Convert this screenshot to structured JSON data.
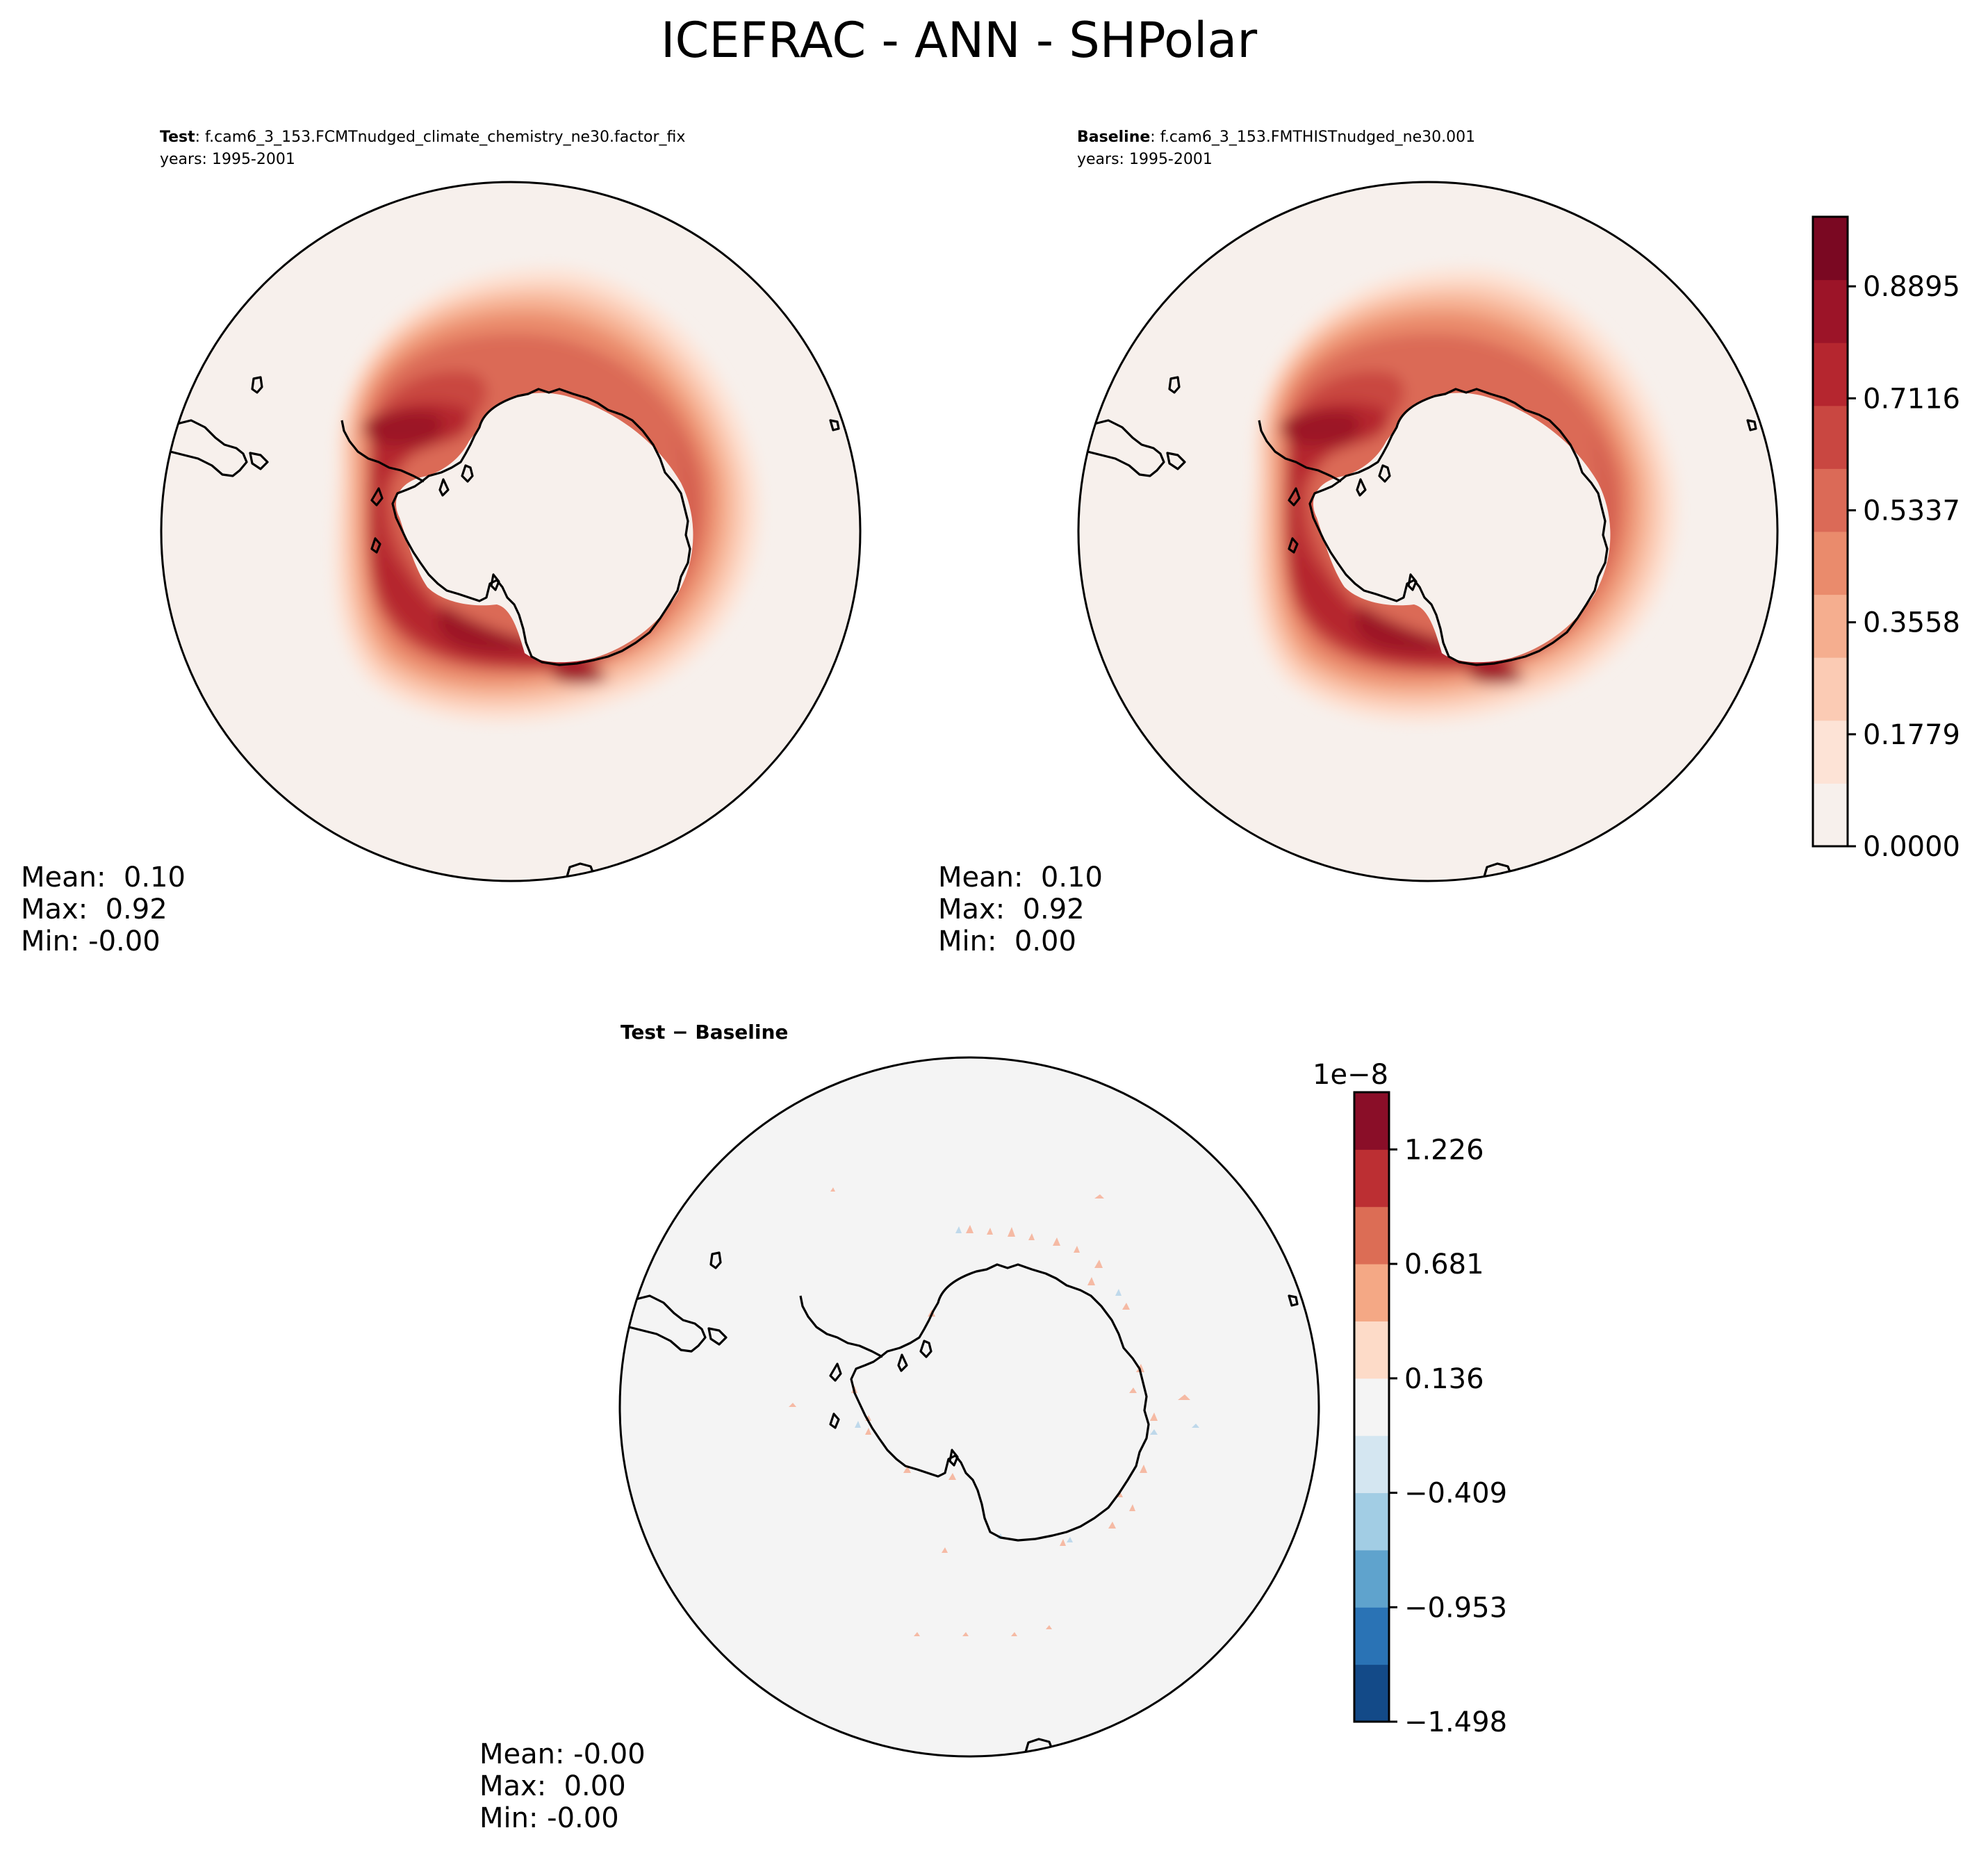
{
  "figure": {
    "title": "ICEFRAC - ANN - SHPolar"
  },
  "panels": [
    {
      "id": "test",
      "label": "Test",
      "case": ": f.cam6_3_153.FCMTnudged_climate_chemistry_ne30.factor_fix",
      "years": "years: 1995-2001",
      "stats": {
        "mean": "Mean:  0.10",
        "max": "Max:  0.92",
        "min": "Min: -0.00"
      }
    },
    {
      "id": "baseline",
      "label": "Baseline",
      "case": ": f.cam6_3_153.FMTHISTnudged_ne30.001",
      "years": "years: 1995-2001",
      "stats": {
        "mean": "Mean:  0.10",
        "max": "Max:  0.92",
        "min": "Min:  0.00"
      }
    },
    {
      "id": "diff",
      "label": "Test − Baseline",
      "stats": {
        "mean": "Mean: -0.00",
        "max": "Max:  0.00",
        "min": "Min: -0.00"
      }
    }
  ],
  "colorbars": {
    "field": {
      "ticks": [
        "0.0000",
        "0.1779",
        "0.3558",
        "0.5337",
        "0.7116",
        "0.8895"
      ],
      "colors": [
        "#f7f0ec",
        "#fde3d6",
        "#fbcbb4",
        "#f5ae8f",
        "#ea8b6c",
        "#db6a57",
        "#c94741",
        "#b5262f",
        "#9c1428",
        "#7a0822"
      ]
    },
    "diff": {
      "exponent": "1e−8",
      "ticks": [
        "−1.498",
        "−0.953",
        "−0.409",
        "0.136",
        "0.681",
        "1.226"
      ],
      "colors": [
        "#134a88",
        "#2a73b5",
        "#5fa3cd",
        "#a2cde4",
        "#d4e6f1",
        "#f4f4f4",
        "#fddbc8",
        "#f4a885",
        "#dc6d55",
        "#bc2f33",
        "#8a0e28"
      ]
    }
  },
  "chart_data": {
    "type": "heatmap",
    "variable": "ICEFRAC",
    "season": "ANN",
    "region": "SHPolar",
    "field_colorbar_range": [
      0.0,
      1.0
    ],
    "diff_colorbar_range": [
      -1.498e-08,
      1.498e-08
    ],
    "panels": [
      {
        "name": "Test",
        "mean": 0.1,
        "max": 0.92,
        "min": -0.0
      },
      {
        "name": "Baseline",
        "mean": 0.1,
        "max": 0.92,
        "min": 0.0
      },
      {
        "name": "Test − Baseline",
        "mean": -0.0,
        "max": 0.0,
        "min": -0.0
      }
    ]
  }
}
